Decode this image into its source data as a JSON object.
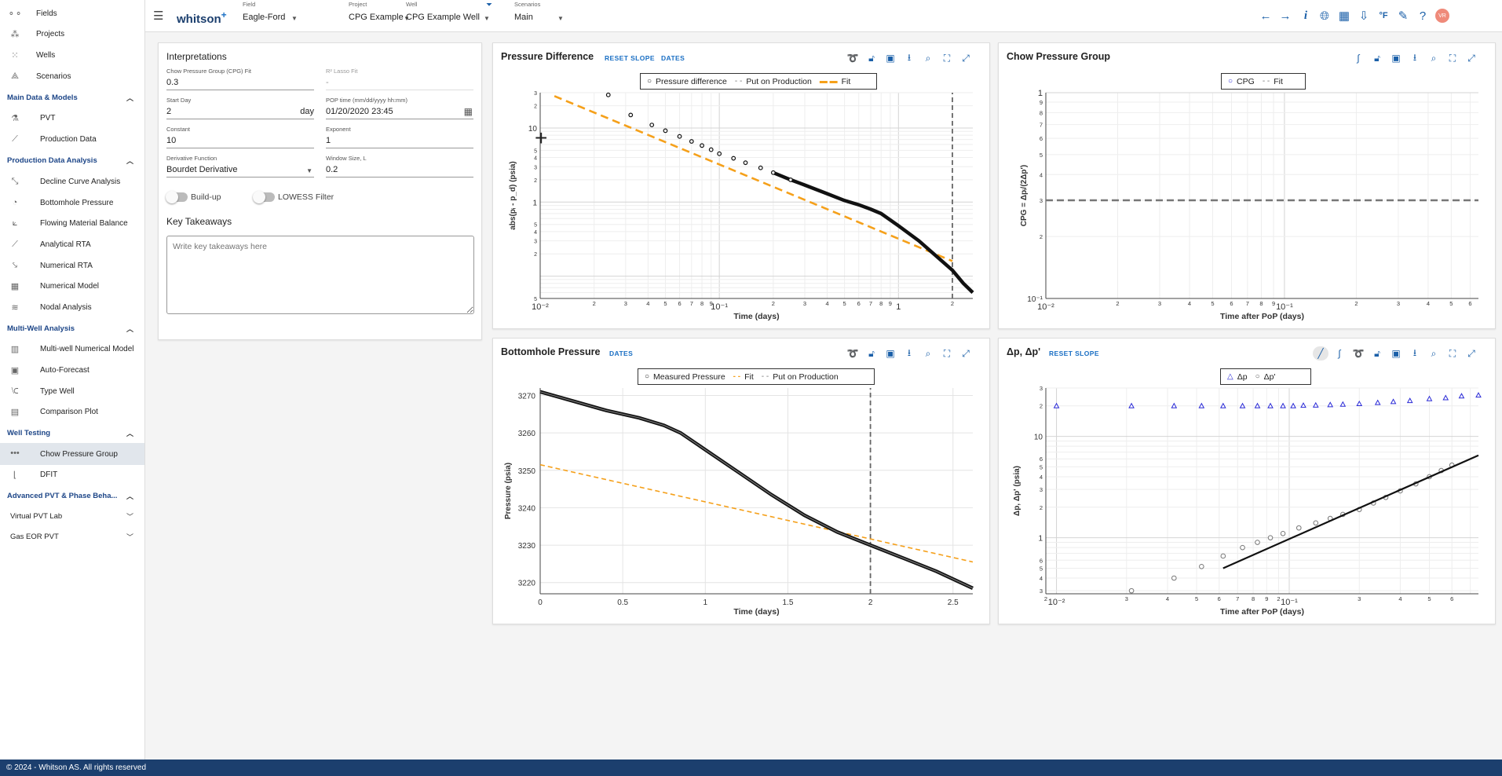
{
  "sidebar": {
    "top_items": [
      {
        "label": "Fields",
        "icon": "fields-icon"
      },
      {
        "label": "Projects",
        "icon": "projects-icon"
      },
      {
        "label": "Wells",
        "icon": "wells-icon"
      },
      {
        "label": "Scenarios",
        "icon": "scenarios-icon"
      }
    ],
    "sections": [
      {
        "label": "Main Data & Models",
        "items": [
          "PVT",
          "Production Data"
        ]
      },
      {
        "label": "Production Data Analysis",
        "items": [
          "Decline Curve Analysis",
          "Bottomhole Pressure",
          "Flowing Material Balance",
          "Analytical RTA",
          "Numerical RTA",
          "Numerical Model",
          "Nodal Analysis"
        ]
      },
      {
        "label": "Multi-Well Analysis",
        "items": [
          "Multi-well Numerical Model",
          "Auto-Forecast",
          "Type Well",
          "Comparison Plot"
        ]
      },
      {
        "label": "Well Testing",
        "items": [
          "Chow Pressure Group",
          "DFIT"
        ]
      },
      {
        "label": "Advanced PVT & Phase Beha...",
        "items": []
      }
    ],
    "expandables": [
      "Virtual PVT Lab",
      "Gas EOR PVT"
    ],
    "selected": "Chow Pressure Group"
  },
  "topbar": {
    "logo": "whitson",
    "logo_sup": "+",
    "selectors": [
      {
        "label": "Field",
        "value": "Eagle-Ford"
      },
      {
        "label": "Project",
        "value": "CPG Example"
      },
      {
        "label": "Well",
        "value": "CPG Example Well"
      },
      {
        "label": "Scenarios",
        "value": "Main"
      }
    ],
    "user_initials": "VR"
  },
  "interpretations": {
    "title": "Interpretations",
    "fields": {
      "cpg_fit": {
        "label": "Chow Pressure Group (CPG) Fit",
        "value": "0.3"
      },
      "r2": {
        "label": "R² Lasso Fit",
        "value": "-"
      },
      "start_day": {
        "label": "Start Day",
        "value": "2",
        "unit": "day"
      },
      "pop_time": {
        "label": "POP time (mm/dd/yyyy hh:mm)",
        "value": "01/20/2020 23:45"
      },
      "constant": {
        "label": "Constant",
        "value": "10"
      },
      "exponent": {
        "label": "Exponent",
        "value": "1"
      },
      "derivative": {
        "label": "Derivative Function",
        "value": "Bourdet Derivative"
      },
      "window": {
        "label": "Window Size, L",
        "value": "0.2"
      }
    },
    "toggles": {
      "buildup": "Build-up",
      "lowess": "LOWESS Filter"
    },
    "takeaways_title": "Key Takeaways",
    "takeaways_placeholder": "Write key takeaways here"
  },
  "panels": {
    "pd": {
      "title": "Pressure Difference",
      "links": [
        "RESET SLOPE",
        "DATES"
      ],
      "legend": [
        "Pressure difference",
        "Put on Production",
        "Fit"
      ]
    },
    "cpg": {
      "title": "Chow Pressure Group",
      "legend": [
        "CPG",
        "Fit"
      ]
    },
    "bhp": {
      "title": "Bottomhole Pressure",
      "links": [
        "DATES"
      ],
      "legend": [
        "Measured Pressure",
        "Fit",
        "Put on Production"
      ]
    },
    "dp": {
      "title": "Δp, Δp'",
      "links": [
        "RESET SLOPE"
      ],
      "legend": [
        "Δp",
        "Δp'"
      ]
    }
  },
  "footer": "© 2024 - Whitson AS. All rights reserved",
  "colors": {
    "brand": "#1c3f6e",
    "link": "#1a6fc4",
    "fit": "#f5a01a",
    "dp_series": "#2a2ad6",
    "avatar": "#ef8a7a"
  },
  "chart_data": [
    {
      "type": "scatter",
      "title": "Pressure Difference",
      "xlabel": "Time (days)",
      "ylabel": "abs(pᵢ - p_d) (psia)",
      "x_scale": "log",
      "y_scale": "log",
      "xlim": [
        0.01,
        2.6
      ],
      "ylim": [
        0.05,
        30
      ],
      "x_major_ticks": [
        "10⁻²",
        "10⁻¹",
        "1"
      ],
      "x_minor_ticks": [
        "2",
        "3",
        "4",
        "5",
        "6",
        "7",
        "8",
        "9",
        "2",
        "3",
        "4",
        "5",
        "6",
        "7",
        "8",
        "9",
        "2"
      ],
      "y_major_ticks": [
        "10",
        "1"
      ],
      "series": [
        {
          "name": "Pressure difference",
          "x": [
            0.024,
            0.032,
            0.042,
            0.05,
            0.06,
            0.07,
            0.08,
            0.09,
            0.1,
            0.12,
            0.14,
            0.17,
            0.2,
            0.25,
            0.3,
            0.4,
            0.5,
            0.6,
            0.7,
            0.8,
            1.0,
            1.3,
            1.7,
            2.0,
            2.3,
            2.6
          ],
          "y": [
            28,
            15,
            11,
            9.2,
            7.7,
            6.6,
            5.8,
            5.1,
            4.5,
            3.9,
            3.4,
            2.9,
            2.5,
            2.0,
            1.7,
            1.3,
            1.05,
            0.92,
            0.8,
            0.7,
            0.48,
            0.3,
            0.17,
            0.12,
            0.08,
            0.06
          ]
        },
        {
          "name": "Fit",
          "x": [
            0.012,
            2.0
          ],
          "y": [
            27,
            0.16
          ]
        },
        {
          "name": "Put on Production",
          "x": [
            2.0,
            2.0
          ],
          "y": [
            0.05,
            30
          ]
        }
      ]
    },
    {
      "type": "line",
      "title": "Chow Pressure Group",
      "xlabel": "Time after PoP (days)",
      "ylabel": "CPG = Δpᵢ/(2Δp')",
      "x_scale": "log",
      "y_scale": "log",
      "xlim": [
        0.01,
        0.65
      ],
      "ylim": [
        0.1,
        1
      ],
      "x_major_ticks": [
        "10⁻²",
        "10⁻¹"
      ],
      "x_minor_ticks": [
        "2",
        "3",
        "4",
        "5",
        "6",
        "7",
        "8",
        "9",
        "2",
        "3",
        "4",
        "5",
        "6"
      ],
      "y_major_ticks": [
        "10⁻¹",
        "1"
      ],
      "y_minor_ticks": [
        "2",
        "3",
        "4",
        "5",
        "6",
        "7",
        "8",
        "9"
      ],
      "series": [
        {
          "name": "CPG",
          "x": [],
          "y": []
        },
        {
          "name": "Fit",
          "x": [
            0.01,
            0.65
          ],
          "y": [
            0.3,
            0.3
          ]
        }
      ]
    },
    {
      "type": "line",
      "title": "Bottomhole Pressure",
      "xlabel": "Time (days)",
      "ylabel": "Pressure (psia)",
      "xlim": [
        0,
        2.62
      ],
      "ylim": [
        3217,
        3272
      ],
      "x_ticks": [
        "0",
        "0.5",
        "1",
        "1.5",
        "2",
        "2.5"
      ],
      "y_ticks": [
        "3220",
        "3230",
        "3240",
        "3250",
        "3260",
        "3270"
      ],
      "series": [
        {
          "name": "Measured Pressure",
          "x": [
            0,
            0.2,
            0.4,
            0.6,
            0.75,
            0.85,
            1.0,
            1.2,
            1.4,
            1.6,
            1.8,
            2.0,
            2.2,
            2.4,
            2.62
          ],
          "y": [
            3271,
            3268.5,
            3266,
            3264,
            3262,
            3260,
            3255.5,
            3249.5,
            3243.5,
            3238,
            3233.5,
            3230,
            3226.5,
            3223,
            3218.5
          ]
        },
        {
          "name": "Fit",
          "x": [
            0,
            2.62
          ],
          "y": [
            3251.5,
            3225.5
          ]
        },
        {
          "name": "Put on Production",
          "x": [
            2.0,
            2.0
          ],
          "y": [
            3217,
            3272
          ]
        }
      ]
    },
    {
      "type": "scatter",
      "title": "Δp, Δp'",
      "xlabel": "Time after PoP (days)",
      "ylabel": "Δp, Δp' (psia)",
      "x_scale": "log",
      "y_scale": "log",
      "xlim": [
        0.009,
        0.65
      ],
      "ylim": [
        0.28,
        30
      ],
      "x_major_ticks": [
        "10⁻²",
        "10⁻¹"
      ],
      "x_minor_ticks": [
        "2",
        "3",
        "4",
        "5",
        "6",
        "7",
        "8",
        "9",
        "2",
        "3",
        "4",
        "5",
        "6"
      ],
      "y_major_ticks": [
        "10",
        "1"
      ],
      "series": [
        {
          "name": "Δp",
          "x": [
            0.01,
            0.021,
            0.032,
            0.042,
            0.052,
            0.063,
            0.073,
            0.083,
            0.094,
            0.104,
            0.115,
            0.13,
            0.15,
            0.17,
            0.2,
            0.24,
            0.28,
            0.33,
            0.4,
            0.47,
            0.55,
            0.65
          ],
          "y": [
            20,
            20,
            20,
            20,
            20,
            20,
            20,
            20,
            20,
            20,
            20.2,
            20.3,
            20.5,
            20.7,
            21,
            21.5,
            22,
            22.5,
            23.5,
            24,
            25,
            25.5
          ]
        },
        {
          "name": "Δp'",
          "x": [
            0.021,
            0.032,
            0.042,
            0.052,
            0.063,
            0.073,
            0.083,
            0.094,
            0.11,
            0.13,
            0.15,
            0.17,
            0.2,
            0.23,
            0.26,
            0.3,
            0.35,
            0.4,
            0.45,
            0.5
          ],
          "y": [
            0.3,
            0.4,
            0.52,
            0.66,
            0.8,
            0.9,
            1.0,
            1.1,
            1.25,
            1.4,
            1.55,
            1.7,
            1.9,
            2.2,
            2.5,
            2.9,
            3.4,
            4.0,
            4.6,
            5.2
          ]
        },
        {
          "name": "Slope",
          "x": [
            0.052,
            0.65
          ],
          "y": [
            0.5,
            6.5
          ]
        }
      ]
    }
  ]
}
